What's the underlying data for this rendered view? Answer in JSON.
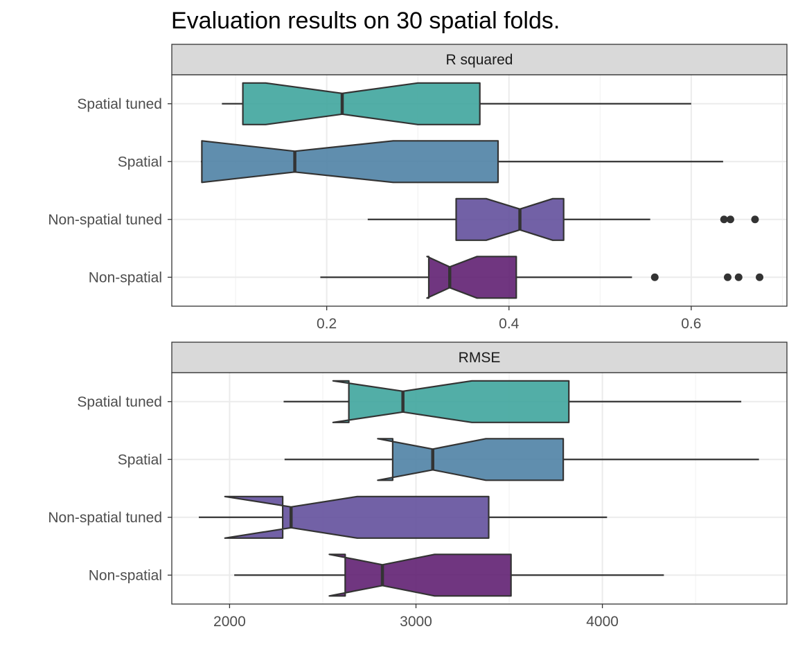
{
  "title": "Evaluation results on 30 spatial folds.",
  "chart_data": [
    {
      "type": "boxplot",
      "panel_label": "R squared",
      "notched": true,
      "orientation": "horizontal",
      "categories": [
        "Spatial tuned",
        "Spatial",
        "Non-spatial tuned",
        "Non-spatial"
      ],
      "xlim": [
        0.03,
        0.705
      ],
      "xticks": [
        0.2,
        0.4,
        0.6
      ],
      "xtick_labels": [
        "0.2",
        "0.4",
        "0.6"
      ],
      "grid": true,
      "boxes": [
        {
          "category": "Spatial tuned",
          "color": "#3aa39b",
          "whisker_low": 0.085,
          "q1": 0.108,
          "notch_low": 0.133,
          "median": 0.217,
          "notch_high": 0.3,
          "q3": 0.368,
          "whisker_high": 0.6,
          "outliers": []
        },
        {
          "category": "Spatial",
          "color": "#4a7ea3",
          "whisker_low": 0.062,
          "q1": 0.063,
          "notch_low": 0.063,
          "median": 0.165,
          "notch_high": 0.273,
          "q3": 0.388,
          "whisker_high": 0.635,
          "outliers": []
        },
        {
          "category": "Non-spatial tuned",
          "color": "#5e4b9a",
          "whisker_low": 0.245,
          "q1": 0.342,
          "notch_low": 0.375,
          "median": 0.412,
          "notch_high": 0.448,
          "q3": 0.46,
          "whisker_high": 0.555,
          "outliers": [
            0.636,
            0.643,
            0.67
          ]
        },
        {
          "category": "Non-spatial",
          "color": "#5c1a6e",
          "whisker_low": 0.193,
          "q1": 0.312,
          "notch_low": 0.31,
          "median": 0.335,
          "notch_high": 0.365,
          "q3": 0.408,
          "whisker_high": 0.535,
          "outliers": [
            0.56,
            0.64,
            0.652,
            0.675
          ]
        }
      ]
    },
    {
      "type": "boxplot",
      "panel_label": "RMSE",
      "notched": true,
      "orientation": "horizontal",
      "categories": [
        "Spatial tuned",
        "Spatial",
        "Non-spatial tuned",
        "Non-spatial"
      ],
      "xlim": [
        1690,
        4990
      ],
      "xticks": [
        2000,
        3000,
        4000
      ],
      "xtick_labels": [
        "2000",
        "3000",
        "4000"
      ],
      "grid": true,
      "boxes": [
        {
          "category": "Spatial tuned",
          "color": "#3aa39b",
          "whisker_low": 2290,
          "q1": 2640,
          "notch_low": 2555,
          "median": 2930,
          "notch_high": 3300,
          "q3": 3820,
          "whisker_high": 4745,
          "outliers": []
        },
        {
          "category": "Spatial",
          "color": "#4a7ea3",
          "whisker_low": 2295,
          "q1": 2875,
          "notch_low": 2795,
          "median": 3090,
          "notch_high": 3375,
          "q3": 3790,
          "whisker_high": 4840,
          "outliers": []
        },
        {
          "category": "Non-spatial tuned",
          "color": "#5e4b9a",
          "whisker_low": 1835,
          "q1": 2285,
          "notch_low": 1975,
          "median": 2330,
          "notch_high": 2685,
          "q3": 3390,
          "whisker_high": 4025,
          "outliers": []
        },
        {
          "category": "Non-spatial",
          "color": "#5c1a6e",
          "whisker_low": 2025,
          "q1": 2620,
          "notch_low": 2535,
          "median": 2820,
          "notch_high": 3100,
          "q3": 3510,
          "whisker_high": 4330,
          "outliers": []
        }
      ]
    }
  ]
}
